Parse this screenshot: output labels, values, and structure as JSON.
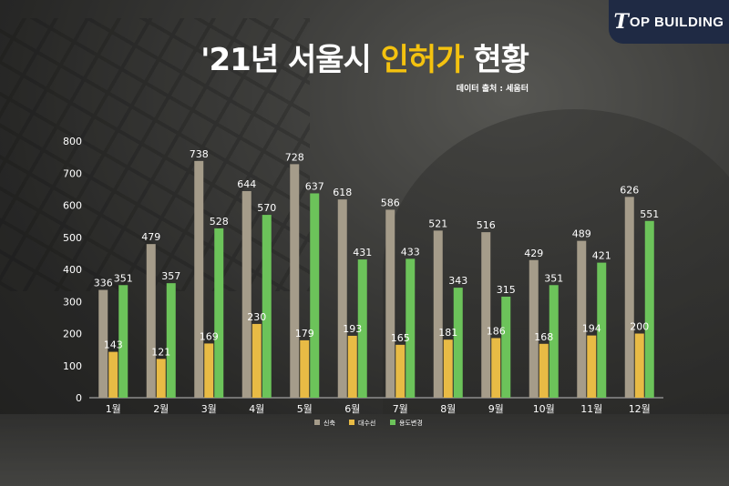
{
  "brand": {
    "logo_initial": "T",
    "logo_rest": "OP BUILDING"
  },
  "title": {
    "prefix": "'21년 서울시 ",
    "highlight": "인허가",
    "suffix": " 현황"
  },
  "source": "데이터 출처 : 세움터",
  "colors": {
    "신축": "#a59c8a",
    "대수선": "#e8bb45",
    "용도변경": "#6cc35a",
    "accent": "#f4c20f"
  },
  "chart_data": {
    "type": "bar",
    "title": "'21년 서울시 인허가 현황",
    "categories": [
      "1월",
      "2월",
      "3월",
      "4월",
      "5월",
      "6월",
      "7월",
      "8월",
      "9월",
      "10월",
      "11월",
      "12월"
    ],
    "series": [
      {
        "name": "신축",
        "values": [
          336,
          479,
          738,
          644,
          728,
          618,
          586,
          521,
          516,
          429,
          489,
          626
        ]
      },
      {
        "name": "대수선",
        "values": [
          143,
          121,
          169,
          230,
          179,
          193,
          165,
          181,
          186,
          168,
          194,
          200
        ]
      },
      {
        "name": "용도변경",
        "values": [
          351,
          357,
          528,
          570,
          637,
          431,
          433,
          343,
          315,
          351,
          421,
          551
        ]
      }
    ],
    "ylim": [
      0,
      800
    ],
    "yticks": [
      0,
      100,
      200,
      300,
      400,
      500,
      600,
      700,
      800
    ],
    "legend": "bottom",
    "grid": false
  }
}
